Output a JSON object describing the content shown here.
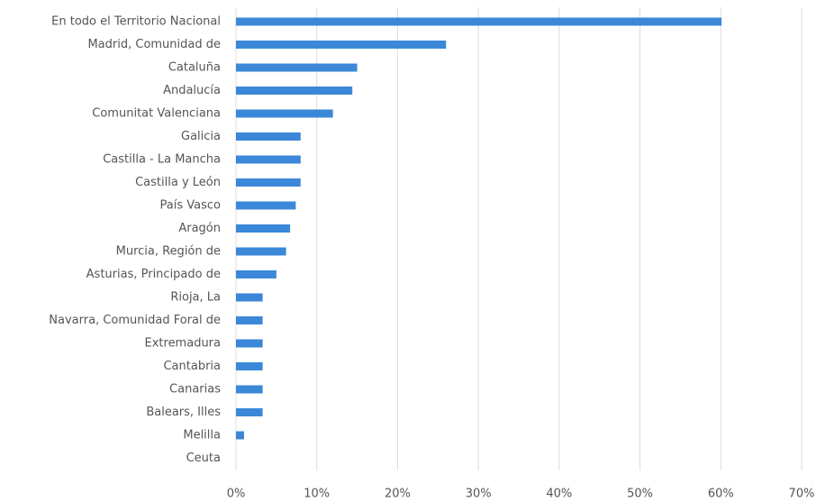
{
  "chart_data": {
    "type": "bar",
    "orientation": "horizontal",
    "categories": [
      "En todo el Territorio Nacional",
      "Madrid, Comunidad de",
      "Cataluña",
      "Andalucía",
      "Comunitat Valenciana",
      "Galicia",
      "Castilla - La Mancha",
      "Castilla y León",
      "País Vasco",
      "Aragón",
      "Murcia, Región de",
      "Asturias, Principado de",
      "Rioja, La",
      "Navarra, Comunidad Foral de",
      "Extremadura",
      "Cantabria",
      "Canarias",
      "Balears, Illes",
      "Melilla",
      "Ceuta"
    ],
    "values": [
      60.1,
      26,
      15,
      14.4,
      12,
      8,
      8,
      8,
      7.4,
      6.7,
      6.2,
      5,
      3.3,
      3.3,
      3.3,
      3.3,
      3.3,
      3.3,
      1,
      0
    ],
    "color": "#3b88d8",
    "xlim": [
      0,
      70
    ],
    "xticks": [
      {
        "value": 0,
        "label": "0%"
      },
      {
        "value": 10,
        "label": "10%"
      },
      {
        "value": 20,
        "label": "20%"
      },
      {
        "value": 30,
        "label": "30%"
      },
      {
        "value": 40,
        "label": "40%"
      },
      {
        "value": 50,
        "label": "50%"
      },
      {
        "value": 60,
        "label": "60%"
      },
      {
        "value": 70,
        "label": "70%"
      }
    ],
    "grid": true
  }
}
